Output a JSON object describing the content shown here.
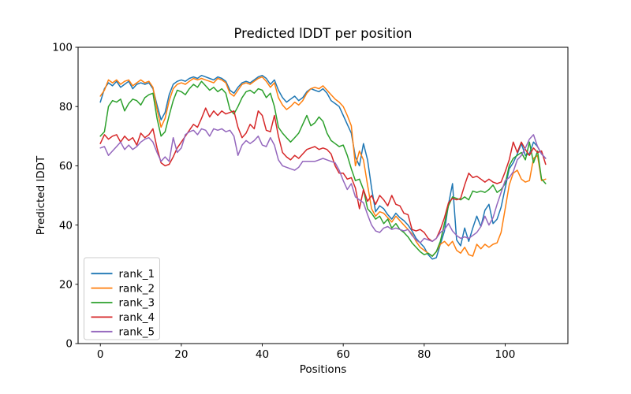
{
  "chart_data": {
    "type": "line",
    "title": "Predicted lDDT per position",
    "xlabel": "Positions",
    "ylabel": "Predicted lDDT",
    "xlim": [
      -5.5,
      115.5
    ],
    "ylim": [
      0,
      100
    ],
    "xticks": [
      0,
      20,
      40,
      60,
      80,
      100
    ],
    "yticks": [
      0,
      20,
      40,
      60,
      80,
      100
    ],
    "grid": false,
    "legend_position": "lower left",
    "x_start": 0,
    "x_step": 1,
    "frame_color": "#000000",
    "legend_edge_color": "#cccccc",
    "series": [
      {
        "name": "rank_1",
        "color": "#1f77b4",
        "values": [
          81.5,
          86,
          88,
          87,
          88.5,
          86.5,
          87.5,
          88.5,
          86,
          87.5,
          88,
          87.5,
          88,
          86,
          80.5,
          75.5,
          78,
          84,
          87.5,
          88.5,
          89,
          88.5,
          89.5,
          90,
          89.5,
          90.5,
          90,
          89.5,
          89,
          90,
          89.5,
          88.5,
          85.5,
          84.5,
          86.5,
          88,
          88.5,
          88,
          89,
          90,
          90.5,
          89.5,
          87.5,
          89,
          85.5,
          83,
          81.5,
          82.5,
          83.5,
          82,
          83,
          85,
          86,
          85.5,
          85,
          86,
          84.5,
          82,
          81,
          80,
          77,
          74,
          71,
          63,
          60,
          67.5,
          62,
          52.5,
          44.5,
          46.5,
          45.5,
          43.5,
          42,
          44,
          42.5,
          41.5,
          40,
          38,
          35.5,
          34,
          32.5,
          30,
          28.5,
          29,
          33.5,
          38,
          47,
          54,
          35,
          33,
          39,
          34.5,
          39,
          43,
          39.5,
          45,
          47,
          40.5,
          42,
          46,
          52.5,
          59,
          61,
          64,
          67.5,
          63.5,
          64,
          68,
          66.5,
          64,
          62.5
        ]
      },
      {
        "name": "rank_2",
        "color": "#ff7f0e",
        "values": [
          83.5,
          85.5,
          89,
          88,
          89,
          87.5,
          88.5,
          89,
          87,
          88,
          89,
          88,
          88.5,
          86.5,
          79,
          73,
          76,
          82,
          86,
          87.5,
          88,
          87.5,
          88.5,
          89.5,
          89,
          89.5,
          89,
          88.5,
          88,
          89.5,
          89,
          88,
          84.5,
          83.5,
          85.5,
          87.5,
          88,
          87.5,
          88.5,
          89.5,
          90,
          88.5,
          86.5,
          88,
          83,
          80.5,
          79,
          80,
          81.5,
          80.5,
          82,
          84.5,
          86,
          86.5,
          86,
          87,
          85.5,
          84,
          82.5,
          81.5,
          80,
          77,
          73.5,
          60,
          65,
          62,
          53.5,
          45.5,
          43,
          44.5,
          44,
          42.5,
          41,
          43,
          41.5,
          40,
          38.5,
          37,
          34.5,
          32.5,
          31.5,
          30.5,
          29.5,
          31,
          33.5,
          34.5,
          33,
          34.5,
          31.5,
          30.5,
          32.5,
          30,
          29.5,
          33.5,
          32,
          33.5,
          32.5,
          33.5,
          34,
          37.5,
          45.5,
          53.5,
          57.5,
          58.5,
          55.5,
          54.5,
          55,
          62.5,
          63.5,
          55,
          55.5
        ]
      },
      {
        "name": "rank_3",
        "color": "#2ca02c",
        "values": [
          70,
          71.5,
          80,
          82,
          81.5,
          82.5,
          78.5,
          81,
          82.5,
          82,
          80.5,
          83,
          84,
          84.5,
          76,
          70,
          71.5,
          77,
          82,
          85.5,
          85,
          84,
          86,
          87.5,
          86.5,
          88.5,
          87,
          85.5,
          86.5,
          85,
          86,
          84.5,
          79,
          77.5,
          80,
          83,
          85,
          85.5,
          84.5,
          86,
          85.5,
          83,
          84.5,
          80,
          73,
          71,
          69.5,
          68,
          69.5,
          71,
          74,
          77,
          73.5,
          74.5,
          76.5,
          75,
          71,
          68.5,
          67.5,
          66.5,
          67,
          63.5,
          59,
          55,
          55.5,
          52,
          45.5,
          44,
          42,
          43,
          40.5,
          42,
          39,
          40.5,
          38.5,
          37.5,
          36,
          34,
          32.5,
          31,
          30,
          30.5,
          29.5,
          31,
          34.5,
          40.5,
          46.5,
          49.5,
          49,
          48.5,
          49.5,
          48.5,
          51.5,
          51,
          51.5,
          51,
          52,
          53.5,
          51,
          52,
          54,
          60,
          62.5,
          63.5,
          64.5,
          62,
          68,
          61,
          65,
          55.5,
          54
        ]
      },
      {
        "name": "rank_4",
        "color": "#d62728",
        "values": [
          67.5,
          70.5,
          69,
          70,
          70.5,
          68,
          70,
          68.5,
          69.5,
          67,
          71,
          69.5,
          70.5,
          72.5,
          66,
          61,
          60,
          60.5,
          63,
          66,
          68,
          70,
          72,
          74,
          73,
          76,
          79.5,
          76.5,
          78.5,
          77,
          78.5,
          77.5,
          78,
          78.5,
          73,
          69.5,
          71,
          74,
          72.5,
          78.5,
          77,
          72,
          71.5,
          77,
          70,
          64.5,
          63,
          62,
          63.5,
          62.5,
          64,
          65.5,
          66,
          66.5,
          65.5,
          66,
          65.5,
          64,
          60,
          57.5,
          57.5,
          55.5,
          56,
          52.5,
          45.5,
          52,
          48,
          50,
          47,
          50,
          48.5,
          46.5,
          50,
          47,
          46.5,
          44,
          43.5,
          38.5,
          38,
          38.5,
          37.5,
          35.5,
          34.5,
          35.5,
          38.5,
          42.5,
          47.5,
          49,
          48.5,
          49,
          53.5,
          57.5,
          56,
          56.5,
          55.5,
          54.5,
          55.5,
          54.5,
          54,
          54.5,
          58,
          62,
          68,
          64.5,
          68,
          65.5,
          63.5,
          66,
          64.5,
          65,
          60.5
        ]
      },
      {
        "name": "rank_5",
        "color": "#9467bd",
        "values": [
          66,
          66.5,
          63.5,
          65,
          66.5,
          68,
          65.5,
          67,
          65.5,
          66.5,
          68,
          69,
          69.5,
          68,
          64.5,
          61.5,
          63,
          61.5,
          69.5,
          64.5,
          66,
          70.5,
          71.5,
          72,
          70.5,
          72.5,
          72,
          70,
          72.5,
          72,
          72.5,
          71.5,
          72,
          70,
          63.5,
          67,
          68.5,
          67.5,
          68.5,
          70,
          67,
          66.5,
          69.5,
          67,
          62,
          60,
          59.5,
          59,
          58.5,
          59.5,
          61.5,
          61.5,
          61.5,
          61.5,
          62,
          62.5,
          62,
          61.5,
          61,
          58.5,
          55,
          52,
          54,
          49.5,
          48.5,
          47.5,
          43.5,
          40,
          38,
          37.5,
          39,
          39.5,
          38.5,
          39,
          38.5,
          38,
          38.5,
          36.5,
          35,
          34,
          35.5,
          35,
          34.5,
          35.5,
          37.5,
          38.5,
          40.5,
          38,
          36.5,
          35.5,
          36,
          35.5,
          36.5,
          37.5,
          39.5,
          43,
          40,
          42.5,
          47,
          51,
          55,
          56,
          58,
          62,
          63.5,
          66,
          69,
          70.5,
          66.5,
          64,
          62.5
        ]
      }
    ]
  }
}
